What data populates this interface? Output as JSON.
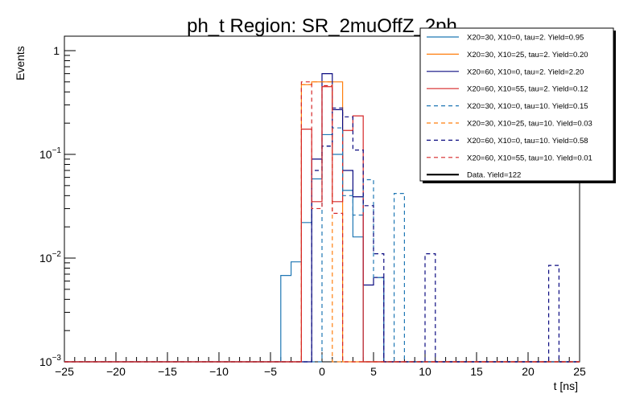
{
  "chart_data": {
    "type": "histogram-step",
    "title": "ph_t Region: SR_2muOffZ_2ph",
    "xlabel": "t [ns]",
    "ylabel": "Events",
    "xlim": [
      -25,
      25
    ],
    "ylim": [
      0.001,
      1.2
    ],
    "yscale": "log",
    "grid": false,
    "legend_placement": "top-right",
    "bin_width": 1,
    "x_ticks": [
      -25,
      -20,
      -15,
      -10,
      -5,
      0,
      5,
      10,
      15,
      20,
      25
    ],
    "x_tick_labels": [
      "−25",
      "−20",
      "−15",
      "−10",
      "−5",
      "0",
      "5",
      "10",
      "15",
      "20",
      "25"
    ],
    "y_ticks": [
      {
        "value": 1,
        "base": "1",
        "exp": ""
      },
      {
        "value": 0.1,
        "base": "10",
        "exp": "−1"
      },
      {
        "value": 0.01,
        "base": "10",
        "exp": "−2"
      },
      {
        "value": 0.001,
        "base": "10",
        "exp": "−3"
      }
    ],
    "series": [
      {
        "name": "X20=30, X10=0, tau=2. Yield=0.95",
        "color": "#1f77b4",
        "dashed": false,
        "width": 1.2,
        "bins": [
          [
            -4,
            0.0068
          ],
          [
            -3,
            0.0092
          ],
          [
            -2,
            0.022
          ],
          [
            -1,
            0.058
          ],
          [
            0,
            0.155
          ],
          [
            1,
            0.1
          ],
          [
            2,
            0.045
          ],
          [
            3,
            0.016
          ]
        ]
      },
      {
        "name": "X20=30, X10=25, tau=2. Yield=0.20",
        "color": "#ff7f0e",
        "dashed": false,
        "width": 1.2,
        "bins": [
          [
            -2,
            0.47
          ],
          [
            -1,
            0.5
          ],
          [
            0,
            0.5
          ],
          [
            1,
            0.5
          ]
        ]
      },
      {
        "name": "X20=60, X10=0, tau=2. Yield=2.20",
        "color": "#0a0a80",
        "dashed": false,
        "width": 1.2,
        "bins": [
          [
            -1,
            0.09
          ],
          [
            0,
            0.6
          ],
          [
            1,
            0.27
          ],
          [
            2,
            0.07
          ],
          [
            3,
            0.039
          ],
          [
            4,
            0.0055
          ],
          [
            5,
            0.0065
          ]
        ]
      },
      {
        "name": "X20=60, X10=55, tau=2. Yield=0.12",
        "color": "#d62728",
        "dashed": false,
        "width": 1.2,
        "bins": [
          [
            -2,
            0.175
          ],
          [
            -1,
            0.035
          ],
          [
            0,
            0.45
          ],
          [
            1,
            0.035
          ],
          [
            2,
            0.17
          ],
          [
            3,
            0.235
          ]
        ]
      },
      {
        "name": "X20=30, X10=0, tau=10. Yield=0.15",
        "color": "#1f77b4",
        "dashed": true,
        "width": 1.2,
        "bins": [
          [
            0,
            0.12
          ],
          [
            1,
            0.18
          ],
          [
            2,
            0.04
          ],
          [
            3,
            0.026
          ],
          [
            4,
            0.057
          ],
          [
            5,
            0.0065
          ],
          [
            6,
            0.0
          ],
          [
            7,
            0.042
          ]
        ]
      },
      {
        "name": "X20=30, X10=25, tau=10. Yield=0.03",
        "color": "#ff7f0e",
        "dashed": true,
        "width": 1.2,
        "bins": [
          [
            -2,
            0.47
          ],
          [
            -1,
            0.5
          ],
          [
            0,
            0.5
          ]
        ]
      },
      {
        "name": "X20=60, X10=0, tau=10. Yield=0.58",
        "color": "#0a0a80",
        "dashed": true,
        "width": 1.2,
        "bins": [
          [
            -1,
            0.07
          ],
          [
            0,
            0.12
          ],
          [
            1,
            0.28
          ],
          [
            2,
            0.23
          ],
          [
            3,
            0.11
          ],
          [
            4,
            0.032
          ],
          [
            5,
            0.011
          ],
          [
            10,
            0.011
          ],
          [
            22,
            0.0085
          ]
        ]
      },
      {
        "name": "X20=60, X10=55, tau=10. Yield=0.01",
        "color": "#d62728",
        "dashed": true,
        "width": 1.2,
        "bins": [
          [
            -2,
            0.5
          ],
          [
            -1,
            0.03
          ],
          [
            0,
            0.46
          ],
          [
            1,
            0.027
          ]
        ]
      },
      {
        "name": "Data. Yield=122",
        "color": "#000000",
        "dashed": false,
        "width": 2.2,
        "bins": []
      }
    ]
  }
}
